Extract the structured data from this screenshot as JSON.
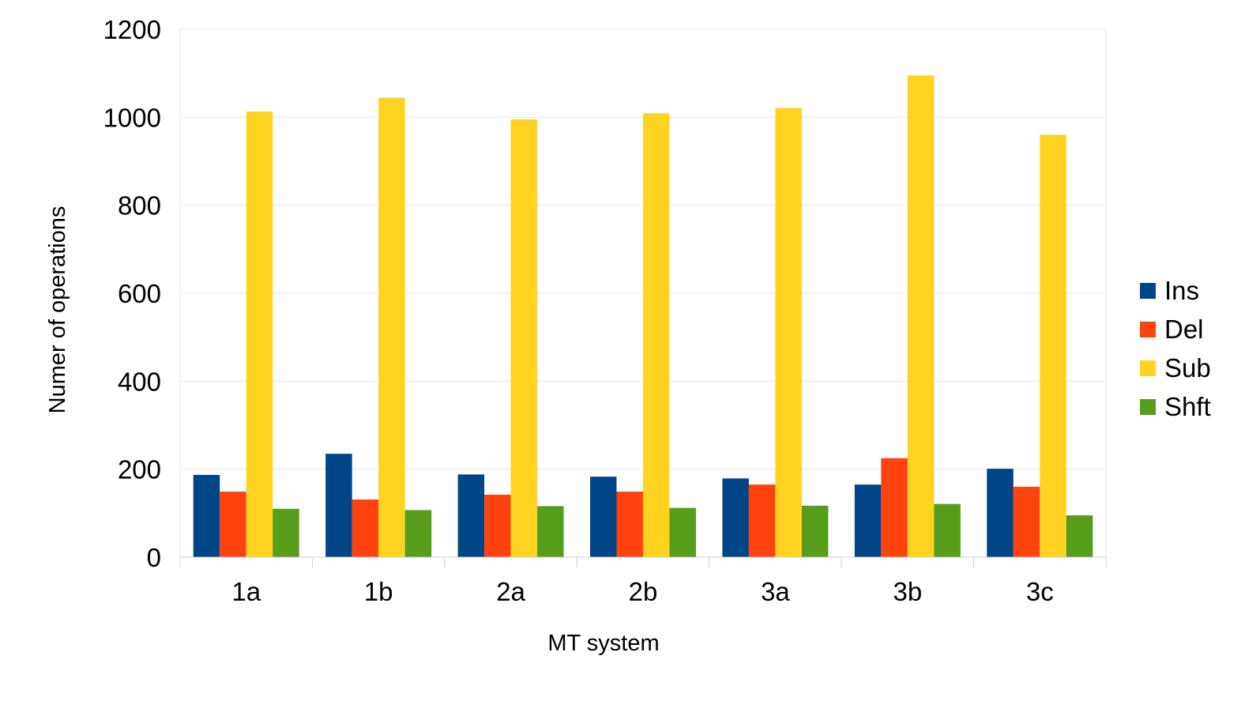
{
  "chart_data": {
    "type": "bar",
    "title": "",
    "xlabel": "MT system",
    "ylabel": "Numer of operations",
    "categories": [
      "1a",
      "1b",
      "2a",
      "2b",
      "3a",
      "3b",
      "3c"
    ],
    "series": [
      {
        "name": "Ins",
        "color": "#004586",
        "values": [
          187,
          235,
          188,
          183,
          179,
          165,
          201
        ]
      },
      {
        "name": "Del",
        "color": "#ff420e",
        "values": [
          149,
          131,
          142,
          149,
          165,
          225,
          160
        ]
      },
      {
        "name": "Sub",
        "color": "#ffd320",
        "values": [
          1013,
          1044,
          995,
          1009,
          1021,
          1095,
          960
        ]
      },
      {
        "name": "Shft",
        "color": "#579d1c",
        "values": [
          110,
          107,
          116,
          112,
          117,
          121,
          95
        ]
      }
    ],
    "ylim": [
      0,
      1200
    ],
    "yticks": [
      0,
      200,
      400,
      600,
      800,
      1000,
      1200
    ],
    "grid": true,
    "legend_position": "right"
  }
}
